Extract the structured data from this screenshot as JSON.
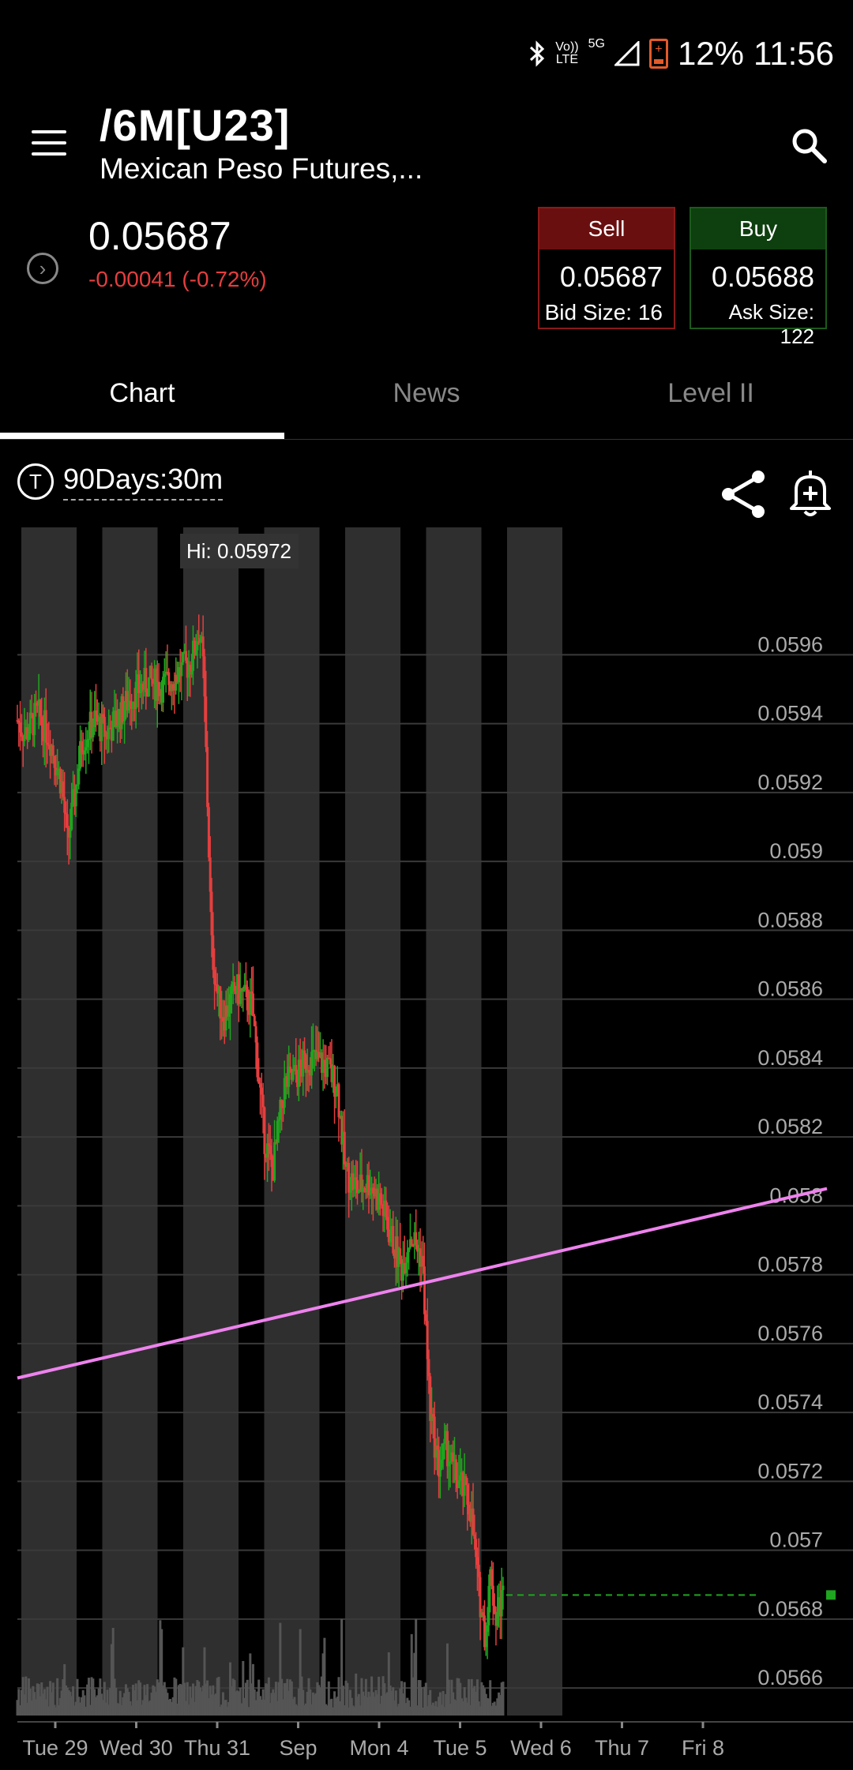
{
  "status_bar": {
    "network_top": "Vo))",
    "network_bottom": "LTE",
    "five_g": "5G",
    "battery": "12%",
    "time": "11:56"
  },
  "header": {
    "symbol": "/6M[U23]",
    "name": "Mexican Peso Futures,...",
    "price": "0.05687",
    "change": "-0.00041 (-0.72%)",
    "change_color": "#e43e3e"
  },
  "trade": {
    "sell_label": "Sell",
    "sell_price": "0.05687",
    "bid_size": "Bid Size: 16",
    "buy_label": "Buy",
    "buy_price": "0.05688",
    "ask_size": "Ask Size: 122"
  },
  "tabs": [
    {
      "label": "Chart",
      "active": true
    },
    {
      "label": "News",
      "active": false
    },
    {
      "label": "Level II",
      "active": false
    }
  ],
  "toolbar": {
    "timeframe_icon": "T",
    "timeframe": "90Days:30m",
    "icons": [
      "share-icon",
      "alert-bell-plus-icon"
    ]
  },
  "chart_data": {
    "type": "candlestick",
    "hi_label": "Hi: 0.05972",
    "y_ticks": [
      "0.0596",
      "0.0594",
      "0.0592",
      "0.059",
      "0.0588",
      "0.0586",
      "0.0584",
      "0.0582",
      "0.058",
      "0.0578",
      "0.0576",
      "0.0574",
      "0.0572",
      "0.057",
      "0.0568",
      "0.0566"
    ],
    "y_values": [
      0.0596,
      0.0594,
      0.0592,
      0.059,
      0.0588,
      0.0586,
      0.0584,
      0.0582,
      0.058,
      0.0578,
      0.0576,
      0.0574,
      0.0572,
      0.057,
      0.0568,
      0.0566
    ],
    "ylim": [
      0.05652,
      0.05997
    ],
    "x_labels": [
      "Tue 29",
      "Wed 30",
      "Thu 31",
      "Sep",
      "Mon 4",
      "Tue 5",
      "Wed 6",
      "Thu 7",
      "Fri 8"
    ],
    "x_label_index": [
      0,
      1,
      2,
      3,
      4,
      5,
      6,
      7,
      8
    ],
    "session_shading": true,
    "grid": true,
    "price_path": [
      [
        0,
        0.05941
      ],
      [
        0.1,
        0.05937
      ],
      [
        0.25,
        0.05943
      ],
      [
        0.4,
        0.05936
      ],
      [
        0.55,
        0.05922
      ],
      [
        0.62,
        0.05905
      ],
      [
        0.7,
        0.05918
      ],
      [
        0.8,
        0.05935
      ],
      [
        0.95,
        0.05941
      ],
      [
        1.1,
        0.05937
      ],
      [
        1.25,
        0.05942
      ],
      [
        1.4,
        0.05948
      ],
      [
        1.6,
        0.05952
      ],
      [
        1.8,
        0.05951
      ],
      [
        2.0,
        0.05955
      ],
      [
        2.15,
        0.05958
      ],
      [
        2.25,
        0.05968
      ],
      [
        2.3,
        0.05955
      ],
      [
        2.35,
        0.05915
      ],
      [
        2.4,
        0.05875
      ],
      [
        2.48,
        0.0586
      ],
      [
        2.55,
        0.05855
      ],
      [
        2.7,
        0.05863
      ],
      [
        2.9,
        0.05858
      ],
      [
        3.05,
        0.0582
      ],
      [
        3.15,
        0.0581
      ],
      [
        3.3,
        0.05835
      ],
      [
        3.45,
        0.05838
      ],
      [
        3.6,
        0.05843
      ],
      [
        3.8,
        0.05841
      ],
      [
        3.95,
        0.05835
      ],
      [
        4.05,
        0.0581
      ],
      [
        4.2,
        0.05805
      ],
      [
        4.35,
        0.05807
      ],
      [
        4.5,
        0.058
      ],
      [
        4.6,
        0.05792
      ],
      [
        4.75,
        0.05782
      ],
      [
        4.85,
        0.05792
      ],
      [
        5.0,
        0.05785
      ],
      [
        5.1,
        0.0574
      ],
      [
        5.2,
        0.05724
      ],
      [
        5.3,
        0.0573
      ],
      [
        5.4,
        0.05722
      ],
      [
        5.5,
        0.05718
      ],
      [
        5.6,
        0.05712
      ],
      [
        5.7,
        0.05688
      ],
      [
        5.78,
        0.05675
      ],
      [
        5.85,
        0.05695
      ],
      [
        5.9,
        0.0568
      ],
      [
        6.0,
        0.05687
      ]
    ],
    "trendline": {
      "from": [
        0,
        0.0575
      ],
      "to": [
        10,
        0.05805
      ],
      "color": "#ee82ee"
    },
    "last_price": 0.05687,
    "last_price_color": "#1fa51f",
    "up_color": "#1fa51f",
    "down_color": "#e43e3e",
    "volume": true
  }
}
